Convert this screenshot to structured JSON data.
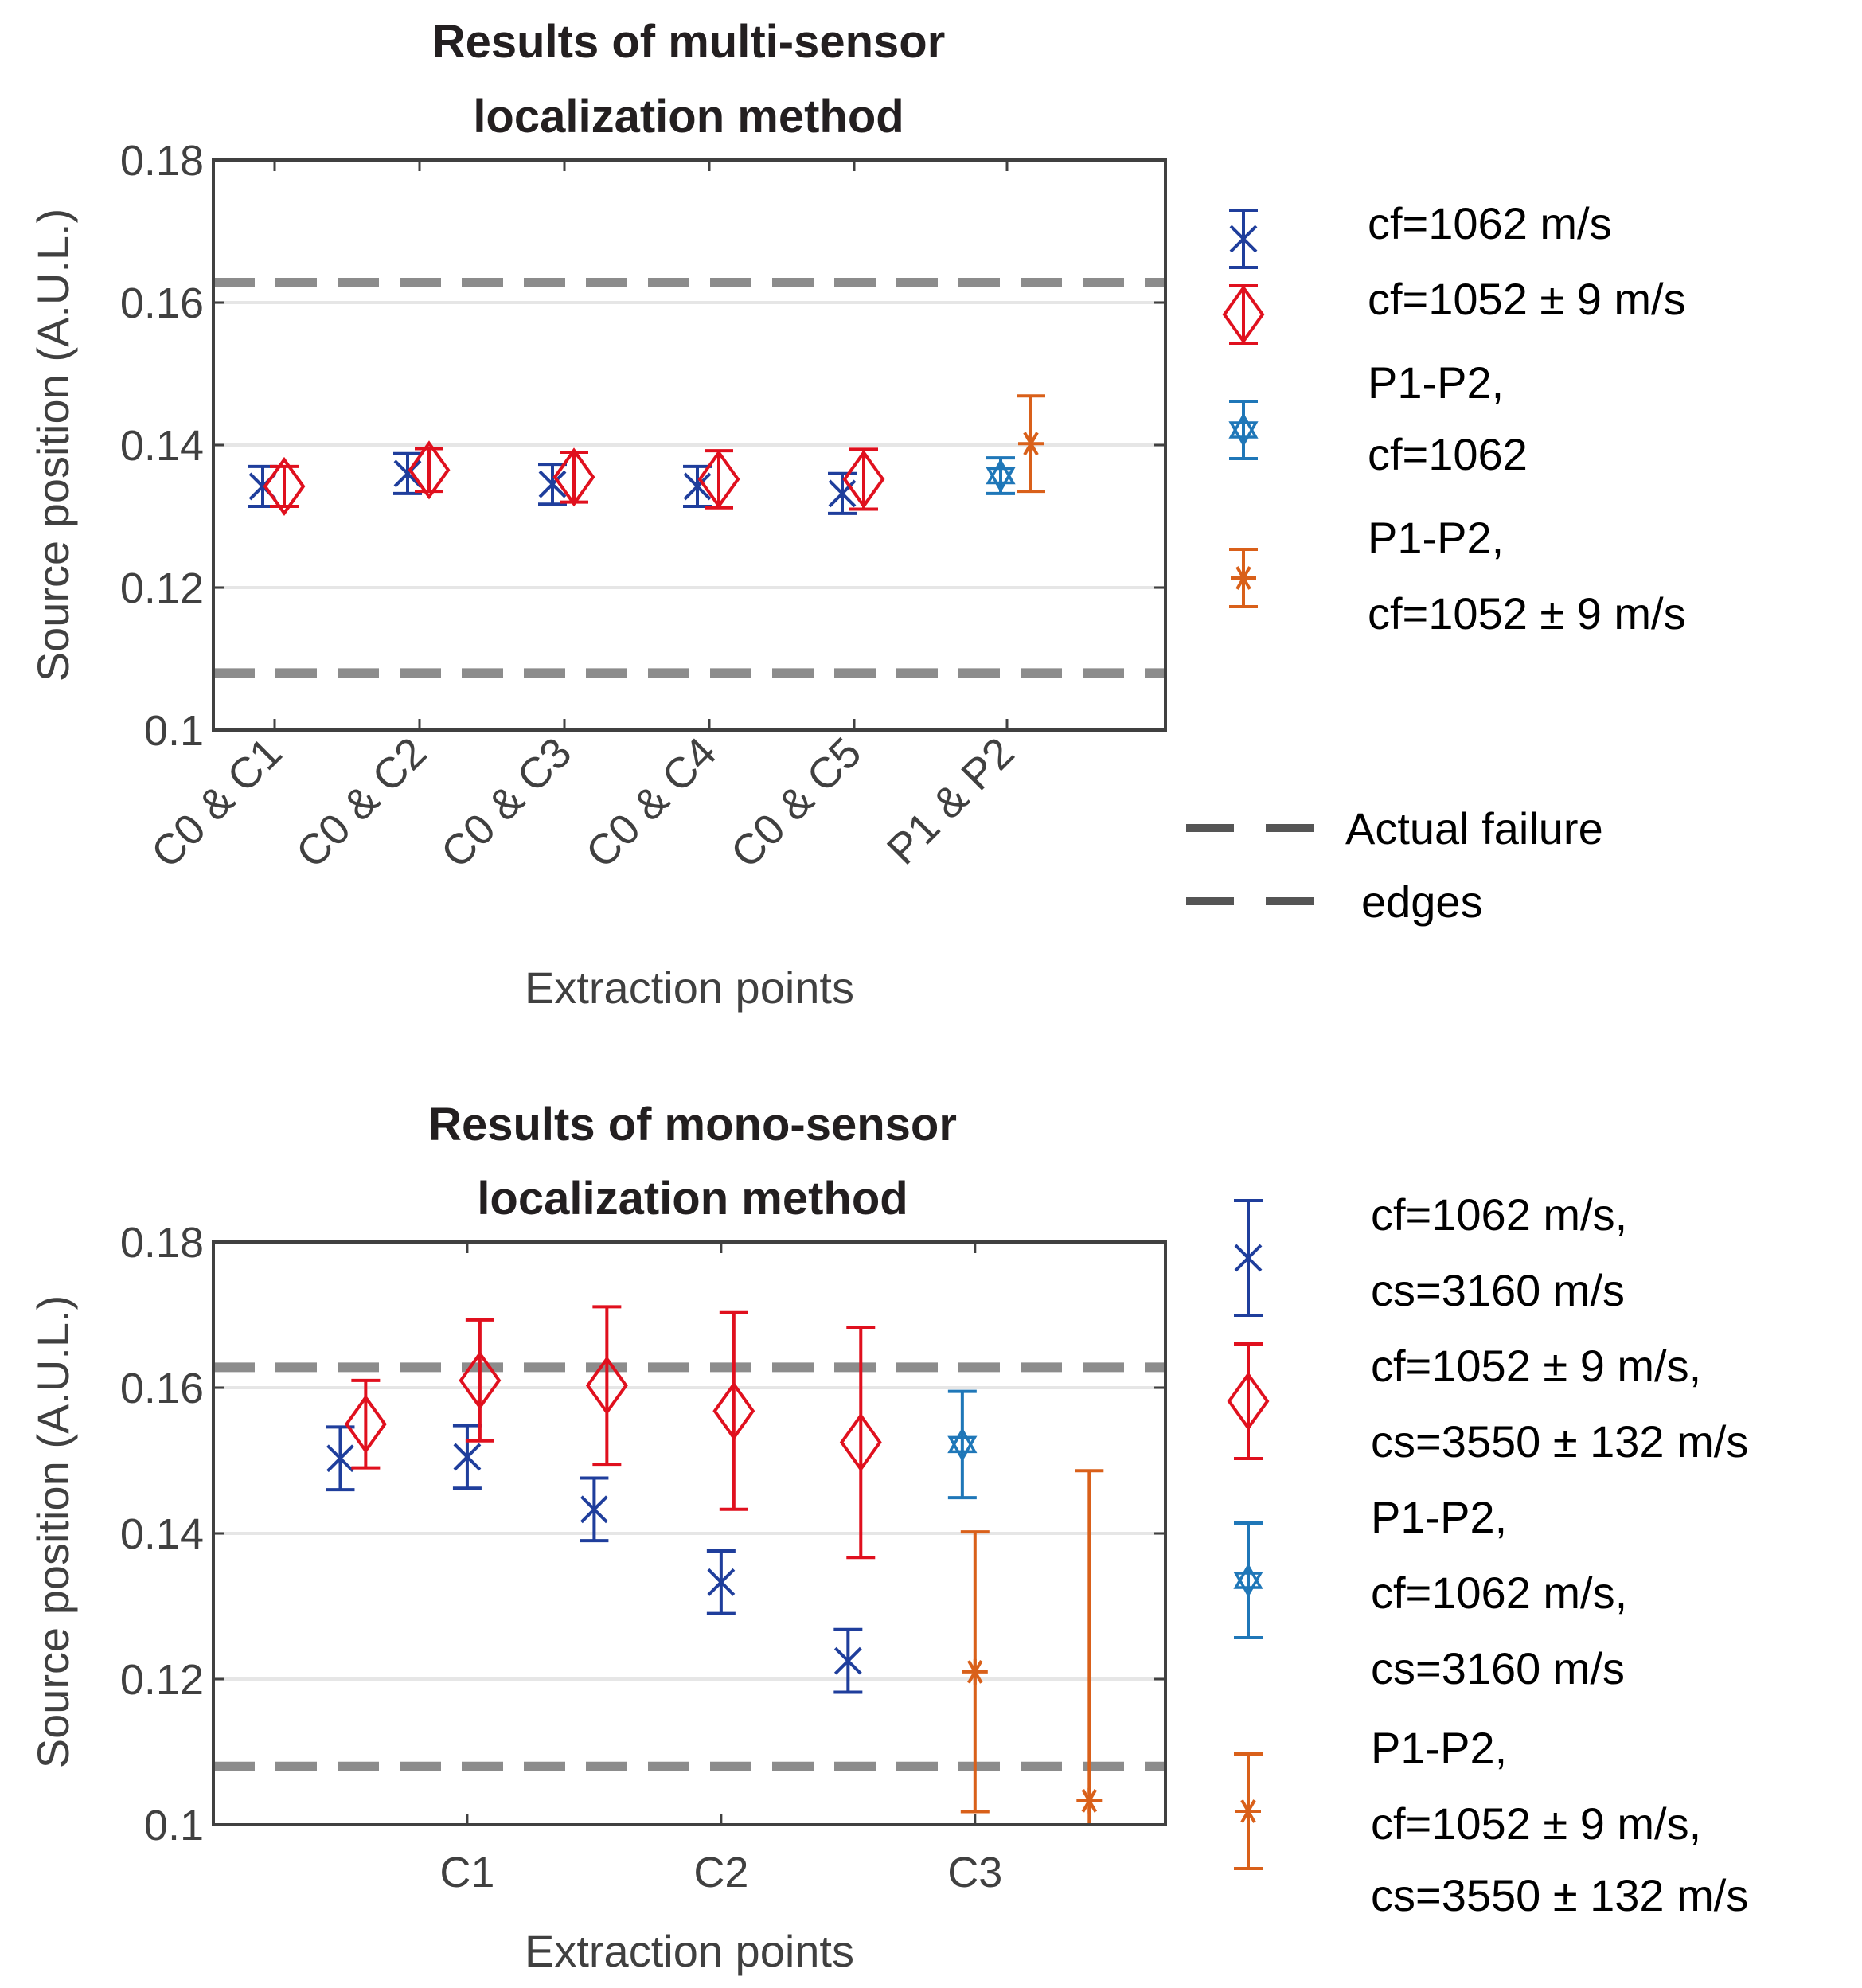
{
  "colors": {
    "blue": "#1f3e9c",
    "red": "#e0101e",
    "cyan": "#1f77b8",
    "orange": "#d9601a",
    "edge": "#8c8c8c",
    "axis": "#404040",
    "grid": "#e6e6e6"
  },
  "chart_data": [
    {
      "type": "scatter",
      "title_lines": [
        "Results of multi-sensor",
        "localization method"
      ],
      "xlabel": "Extraction points",
      "ylabel": "Source position (A.U.L.)",
      "ylim": [
        0.1,
        0.18
      ],
      "yticks": [
        "0.1",
        "0.12",
        "0.14",
        "0.16",
        "0.18"
      ],
      "categories": [
        "C0 & C1",
        "C0 & C2",
        "C0 & C3",
        "C0 & C4",
        "C0 & C5",
        "P1 & P2"
      ],
      "xtick_rotation": "rotated 45°",
      "grid": "horizontal",
      "edges": [
        0.1628,
        0.108
      ],
      "edges_legend": [
        "Actual failure",
        "edges"
      ],
      "series": [
        {
          "legend": [
            "cf=1062 m/s"
          ],
          "marker": "x",
          "color": "blue",
          "points": [
            {
              "x": "C0 & C1",
              "y": 0.1342,
              "err": 0.0028
            },
            {
              "x": "C0 & C2",
              "y": 0.136,
              "err": 0.0028
            },
            {
              "x": "C0 & C3",
              "y": 0.1345,
              "err": 0.0028
            },
            {
              "x": "C0 & C4",
              "y": 0.1342,
              "err": 0.0028
            },
            {
              "x": "C0 & C5",
              "y": 0.1332,
              "err": 0.0028
            }
          ]
        },
        {
          "legend": [
            "cf=1052 ± 9 m/s"
          ],
          "marker": "diamond",
          "color": "red",
          "points": [
            {
              "x": "C0 & C1",
              "y": 0.1342,
              "err": 0.0028
            },
            {
              "x": "C0 & C2",
              "y": 0.1365,
              "err": 0.003
            },
            {
              "x": "C0 & C3",
              "y": 0.1355,
              "err": 0.0035
            },
            {
              "x": "C0 & C4",
              "y": 0.1352,
              "err": 0.004
            },
            {
              "x": "C0 & C5",
              "y": 0.1352,
              "err": 0.0042
            }
          ]
        },
        {
          "legend": [
            "P1-P2,",
            "cf=1062"
          ],
          "marker": "hexagram",
          "color": "cyan",
          "points": [
            {
              "x": "P1 & P2",
              "y": 0.1357,
              "err": 0.0025
            }
          ]
        },
        {
          "legend": [
            "P1-P2,",
            "cf=1052 ± 9 m/s"
          ],
          "marker": "asterisk",
          "color": "orange",
          "points": [
            {
              "x": "P1 & P2",
              "y": 0.1402,
              "err": 0.0067
            }
          ]
        }
      ]
    },
    {
      "type": "scatter",
      "title_lines": [
        "Results of mono-sensor",
        "localization method"
      ],
      "xlabel": "Extraction points",
      "ylabel": "Source position (A.U.L.)",
      "ylim": [
        0.1,
        0.18
      ],
      "yticks": [
        "0.1",
        "0.12",
        "0.14",
        "0.16",
        "0.18"
      ],
      "categories": [
        "C1",
        "C2",
        "C3"
      ],
      "grid": "horizontal",
      "edges": [
        0.1628,
        0.108
      ],
      "series": [
        {
          "legend": [
            "cf=1062 m/s,",
            "cs=3160 m/s"
          ],
          "marker": "x",
          "color": "blue",
          "points": [
            {
              "x": 0.5,
              "y": 0.1503,
              "err": 0.0043
            },
            {
              "x": 1.0,
              "y": 0.1505,
              "err": 0.0043
            },
            {
              "x": 1.5,
              "y": 0.1433,
              "err": 0.0043
            },
            {
              "x": 2.0,
              "y": 0.1333,
              "err": 0.0043
            },
            {
              "x": 2.5,
              "y": 0.1225,
              "err": 0.0043
            }
          ]
        },
        {
          "legend": [
            "cf=1052 ± 9 m/s,",
            "cs=3550 ± 132 m/s"
          ],
          "marker": "diamond",
          "color": "red",
          "points": [
            {
              "x": 0.6,
              "y": 0.155,
              "err": 0.006
            },
            {
              "x": 1.05,
              "y": 0.161,
              "err": 0.0083
            },
            {
              "x": 1.55,
              "y": 0.1603,
              "err": 0.0108
            },
            {
              "x": 2.05,
              "y": 0.1568,
              "err": 0.0135
            },
            {
              "x": 2.55,
              "y": 0.1525,
              "err": 0.0158
            }
          ]
        },
        {
          "legend": [
            "P1-P2,",
            "cf=1062 m/s,",
            "cs=3160 m/s"
          ],
          "marker": "hexagram",
          "color": "cyan",
          "points": [
            {
              "x": 2.95,
              "y": 0.1522,
              "err": 0.0073
            }
          ]
        },
        {
          "legend": [
            "P1-P2,",
            "cf=1052 ± 9 m/s,",
            "cs=3550 ± 132 m/s"
          ],
          "marker": "asterisk",
          "color": "orange",
          "points": [
            {
              "x": 3.0,
              "y": 0.121,
              "err": 0.0192
            },
            {
              "x": 3.45,
              "y": 0.1033,
              "err": 0.0453,
              "errlow": 0.0043
            }
          ]
        }
      ]
    }
  ]
}
